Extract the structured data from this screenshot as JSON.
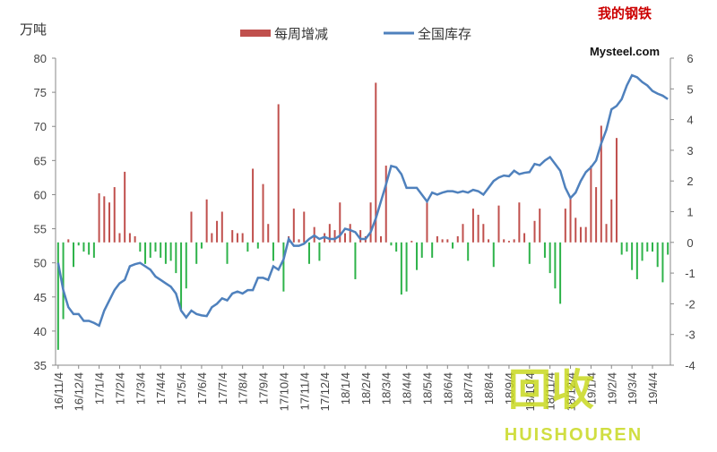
{
  "chart_data": {
    "type": "bar_line",
    "y_axis_label": "万吨",
    "logo": {
      "top": "我的钢铁",
      "bottom": "Mysteel.com"
    },
    "watermark": {
      "top": "回收",
      "bottom": "HUISHOUREN"
    },
    "categories": [
      "16/11/4",
      null,
      null,
      null,
      "16/12/4",
      null,
      null,
      null,
      "17/1/4",
      null,
      null,
      null,
      "17/2/4",
      null,
      null,
      null,
      "17/3/4",
      null,
      null,
      null,
      "17/4/4",
      null,
      null,
      null,
      "17/5/4",
      null,
      null,
      null,
      "17/6/4",
      null,
      null,
      null,
      "17/7/4",
      null,
      null,
      null,
      "17/8/4",
      null,
      null,
      null,
      "17/9/4",
      null,
      null,
      null,
      "17/10/4",
      null,
      null,
      null,
      "17/11/4",
      null,
      null,
      null,
      "17/12/4",
      null,
      null,
      null,
      "18/1/4",
      null,
      null,
      null,
      "18/2/4",
      null,
      null,
      null,
      "18/3/4",
      null,
      null,
      null,
      "18/4/4",
      null,
      null,
      null,
      "18/5/4",
      null,
      null,
      null,
      "18/6/4",
      null,
      null,
      null,
      "18/7/4",
      null,
      null,
      null,
      "18/8/4",
      null,
      null,
      null,
      "18/9/4",
      null,
      null,
      null,
      "18/10/4",
      null,
      null,
      null,
      "18/11/4",
      null,
      null,
      null,
      "18/12/4",
      null,
      null,
      null,
      "19/1/4",
      null,
      null,
      null,
      "19/2/4",
      null,
      null,
      null,
      "19/3/4",
      null,
      null,
      null,
      "19/4/4",
      null,
      null,
      null
    ],
    "series": [
      {
        "name": "每周增减",
        "kind": "bar",
        "axis": "y2",
        "color": "#c0504d",
        "negative_color": "#2eb34a",
        "values": [
          -3.5,
          -2.5,
          0.1,
          -0.8,
          -0.1,
          -0.3,
          -0.4,
          -0.5,
          1.6,
          1.5,
          1.3,
          1.8,
          0.3,
          2.3,
          0.3,
          0.2,
          -0.3,
          -0.7,
          -0.5,
          -0.3,
          -0.5,
          -0.7,
          -0.6,
          -1.0,
          -2.2,
          -1.5,
          1.0,
          -0.7,
          -0.2,
          1.4,
          0.3,
          0.7,
          1.0,
          -0.7,
          0.4,
          0.3,
          0.3,
          -0.3,
          2.4,
          -0.2,
          1.9,
          0.6,
          -0.6,
          4.5,
          -1.6,
          0.2,
          1.1,
          0.1,
          1.0,
          -0.7,
          0.5,
          -0.6,
          0.3,
          0.6,
          0.4,
          1.3,
          0.3,
          0.6,
          -1.2,
          0.4,
          0.2,
          1.3,
          5.2,
          0.2,
          2.5,
          -0.1,
          -0.3,
          -1.7,
          -1.6,
          0.05,
          -0.9,
          -0.5,
          1.3,
          -0.5,
          0.2,
          0.1,
          0.1,
          -0.2,
          0.2,
          0.6,
          -0.6,
          1.1,
          0.9,
          0.6,
          0.1,
          -0.8,
          1.2,
          0.1,
          0.05,
          0.1,
          1.3,
          0.3,
          -0.7,
          0.7,
          1.1,
          -0.5,
          -1.0,
          -1.5,
          -2.0,
          1.1,
          1.5,
          0.8,
          0.5,
          0.5,
          2.5,
          1.8,
          3.8,
          0.6,
          1.4,
          3.4,
          -0.4,
          -0.3,
          -0.9,
          -1.2,
          -0.6,
          -0.3,
          -0.3,
          -0.8,
          -1.3,
          -0.4
        ]
      },
      {
        "name": "全国库存",
        "kind": "line",
        "axis": "y",
        "color": "#4f81bd",
        "values": [
          50,
          46,
          43.5,
          42.5,
          42.5,
          41.5,
          41.5,
          41.2,
          40.8,
          43,
          44.5,
          46,
          47,
          47.5,
          49.5,
          49.8,
          50,
          49.5,
          49,
          48,
          47.5,
          47,
          46.5,
          45.5,
          43,
          42,
          43,
          42.5,
          42.3,
          42.2,
          43.5,
          44,
          44.8,
          44.5,
          45.5,
          45.8,
          45.5,
          46,
          46,
          47.8,
          47.8,
          47.5,
          49.5,
          49,
          50.5,
          53.5,
          52.5,
          52.5,
          52.8,
          53.5,
          54,
          53.5,
          53.8,
          53.5,
          53.5,
          54,
          55,
          54.8,
          54.5,
          53.5,
          53.5,
          54.5,
          56.5,
          59,
          61.5,
          64.2,
          64,
          63,
          61,
          61,
          61,
          60,
          59,
          60.3,
          60,
          60.3,
          60.5,
          60.5,
          60.3,
          60.5,
          60.3,
          60.7,
          60.5,
          60,
          61,
          62,
          62.5,
          62.8,
          62.7,
          63.5,
          63,
          63.2,
          63.3,
          64.5,
          64.3,
          65,
          65.5,
          64.5,
          63.5,
          61,
          59.5,
          60.3,
          62,
          63.3,
          64,
          65,
          67.5,
          69.5,
          72.5,
          73,
          74,
          76,
          77.5,
          77.2,
          76.5,
          76,
          75.2,
          74.8,
          74.5,
          74
        ]
      }
    ],
    "ylim": [
      35,
      80
    ],
    "yticks": [
      35,
      40,
      45,
      50,
      55,
      60,
      65,
      70,
      75,
      80
    ],
    "y2lim": [
      -4,
      6
    ],
    "y2ticks": [
      -4,
      -3,
      -2,
      -1,
      0,
      1,
      2,
      3,
      4,
      5,
      6
    ]
  }
}
